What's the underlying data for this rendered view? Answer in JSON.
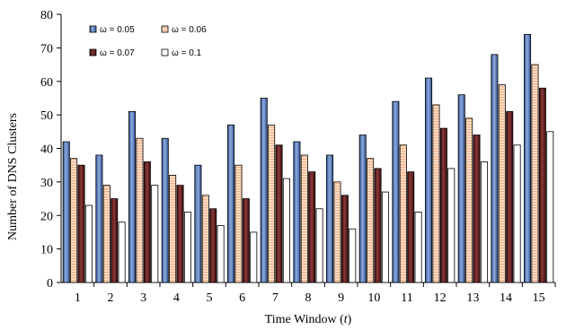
{
  "chart_data": {
    "type": "bar",
    "xlabel_prefix": "Time Window (",
    "xlabel_var": "t",
    "xlabel_suffix": ")",
    "ylabel": "Number of  DNS Clusters",
    "ylim": [
      0,
      80
    ],
    "yticks": [
      0,
      10,
      20,
      30,
      40,
      50,
      60,
      70,
      80
    ],
    "categories": [
      "1",
      "2",
      "3",
      "4",
      "5",
      "6",
      "7",
      "8",
      "9",
      "10",
      "11",
      "12",
      "13",
      "14",
      "15"
    ],
    "grid": false,
    "legend_position": "top-left",
    "series": [
      {
        "name": "ω = 0.05",
        "color": "#4472c4",
        "pattern": "gradient-blue",
        "values": [
          42,
          38,
          51,
          43,
          35,
          47,
          55,
          42,
          38,
          44,
          54,
          61,
          56,
          68,
          74
        ]
      },
      {
        "name": "ω = 0.06",
        "color": "#f4b183",
        "pattern": "hatch-orange",
        "values": [
          37,
          29,
          43,
          32,
          26,
          35,
          47,
          38,
          30,
          37,
          41,
          53,
          49,
          59,
          65
        ]
      },
      {
        "name": "ω = 0.07",
        "color": "#6b1f1f",
        "pattern": "gradient-maroon",
        "values": [
          35,
          25,
          36,
          29,
          22,
          25,
          41,
          33,
          26,
          34,
          33,
          46,
          44,
          51,
          58
        ]
      },
      {
        "name": "ω = 0.1",
        "color": "#ffffff",
        "pattern": "white",
        "values": [
          23,
          18,
          29,
          21,
          17,
          15,
          31,
          22,
          16,
          27,
          21,
          34,
          36,
          41,
          45
        ]
      }
    ]
  }
}
